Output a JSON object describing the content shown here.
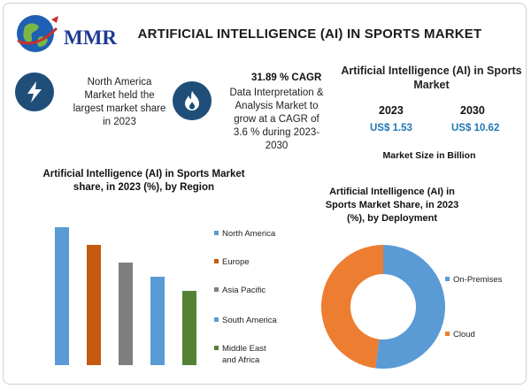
{
  "header": {
    "logo_text": "MMR",
    "title": "ARTIFICIAL INTELLIGENCE (AI) IN SPORTS MARKET"
  },
  "highlights": {
    "left_icon": "lightning-icon",
    "north_america_text": "North America Market held the largest market share in 2023",
    "mid_icon": "flame-icon",
    "cagr_title": "31.89 % CAGR",
    "cagr_text": "Data Interpretation & Analysis Market to grow at a CAGR of 3.6 % during 2023-2030"
  },
  "market_size": {
    "title": "Artificial Intelligence (AI) in Sports Market",
    "year_a": "2023",
    "value_a": "US$ 1.53",
    "year_b": "2030",
    "value_b": "US$ 10.62",
    "note": "Market Size in Billion"
  },
  "colors": {
    "icon_bg": "#1f4e79",
    "value_text": "#1f77b4"
  },
  "chart_data": [
    {
      "type": "bar",
      "title": "Artificial Intelligence (AI) in Sports Market share, in 2023 (%), by Region",
      "categories": [
        "North America",
        "Europe",
        "Asia Pacific",
        "South America",
        "Middle East and Africa"
      ],
      "values": [
        39,
        34,
        29,
        25,
        21
      ],
      "colors": [
        "#5b9bd5",
        "#c55a11",
        "#7f7f7f",
        "#5b9bd5",
        "#548235"
      ],
      "ylim": [
        0,
        40
      ],
      "xlabel": "",
      "ylabel": "",
      "legend_position": "right",
      "grid": false
    },
    {
      "type": "pie",
      "title": "Artificial Intelligence (AI) in Sports Market Share, in 2023 (%), by Deployment",
      "labels": [
        "On-Premises",
        "Cloud"
      ],
      "values": [
        52,
        48
      ],
      "colors": [
        "#5b9bd5",
        "#ed7d31"
      ],
      "donut": true,
      "legend_position": "right"
    }
  ]
}
